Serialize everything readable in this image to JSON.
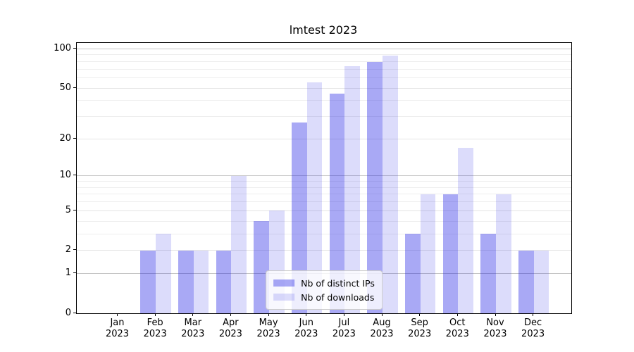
{
  "chart_data": {
    "type": "bar",
    "title": "lmtest 2023",
    "categories": [
      {
        "month": "Jan",
        "year": "2023"
      },
      {
        "month": "Feb",
        "year": "2023"
      },
      {
        "month": "Mar",
        "year": "2023"
      },
      {
        "month": "Apr",
        "year": "2023"
      },
      {
        "month": "May",
        "year": "2023"
      },
      {
        "month": "Jun",
        "year": "2023"
      },
      {
        "month": "Jul",
        "year": "2023"
      },
      {
        "month": "Aug",
        "year": "2023"
      },
      {
        "month": "Sep",
        "year": "2023"
      },
      {
        "month": "Oct",
        "year": "2023"
      },
      {
        "month": "Nov",
        "year": "2023"
      },
      {
        "month": "Dec",
        "year": "2023"
      }
    ],
    "series": [
      {
        "name": "Nb of distinct IPs",
        "values": [
          0,
          2,
          2,
          2,
          4,
          27,
          45,
          79,
          3,
          7,
          3,
          2
        ],
        "color_hex": "#a8a8f3",
        "color": "rgba(30,30,230,0.38)"
      },
      {
        "name": "Nb of downloads",
        "values": [
          0,
          3,
          2,
          10,
          5,
          55,
          74,
          89,
          7,
          17,
          7,
          2
        ],
        "color_hex": "#dcdcfa",
        "color": "rgba(40,40,230,0.16)"
      }
    ],
    "xlabel": "",
    "ylabel": "",
    "yticks": [
      0,
      1,
      2,
      5,
      10,
      20,
      50,
      100
    ],
    "ylim": [
      0,
      111
    ],
    "scale": "log1p",
    "grid": true,
    "legend_position": "lower center"
  }
}
